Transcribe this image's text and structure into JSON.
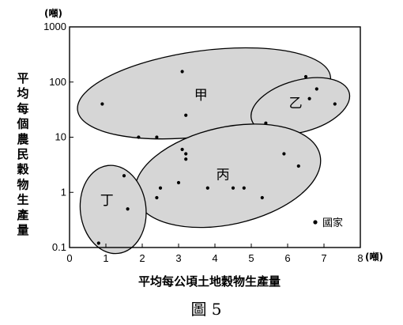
{
  "chart_data": {
    "type": "scatter",
    "x_scale": "linear",
    "y_scale": "log",
    "xlim": [
      0,
      8
    ],
    "ylim": [
      0.1,
      1000
    ],
    "x_ticks": [
      "0",
      "1",
      "2",
      "3",
      "4",
      "5",
      "6",
      "7",
      "8"
    ],
    "y_ticks": [
      "0.1",
      "1",
      "10",
      "100",
      "1000"
    ],
    "x_unit": "(噸)",
    "y_unit": "(噸)",
    "xlabel": "平均每公頃土地穀物生產量",
    "ylabel": "平均每個農民穀物生產量",
    "caption": "圖 5",
    "legend": {
      "marker_label": "國家",
      "placement": "bottom-right"
    },
    "groups": [
      {
        "label": "甲",
        "points": [
          [
            0.9,
            40
          ],
          [
            3.1,
            155
          ],
          [
            3.2,
            25
          ],
          [
            6.5,
            125
          ]
        ]
      },
      {
        "label": "乙",
        "points": [
          [
            5.4,
            18
          ],
          [
            6.6,
            50
          ],
          [
            6.8,
            75
          ],
          [
            7.3,
            40
          ]
        ]
      },
      {
        "label": "丙",
        "points": [
          [
            2.4,
            0.8
          ],
          [
            2.5,
            1.2
          ],
          [
            3.0,
            1.5
          ],
          [
            3.8,
            1.2
          ],
          [
            4.5,
            1.2
          ],
          [
            4.8,
            1.2
          ],
          [
            5.3,
            0.8
          ],
          [
            5.9,
            5
          ],
          [
            6.3,
            3
          ]
        ]
      },
      {
        "label": "丁",
        "points": [
          [
            0.8,
            0.12
          ],
          [
            1.5,
            2
          ],
          [
            1.6,
            0.5
          ]
        ]
      }
    ],
    "ungrouped_points": [
      [
        1.9,
        10
      ],
      [
        2.4,
        10
      ],
      [
        3.1,
        6
      ],
      [
        3.2,
        5
      ],
      [
        3.2,
        4
      ]
    ]
  }
}
